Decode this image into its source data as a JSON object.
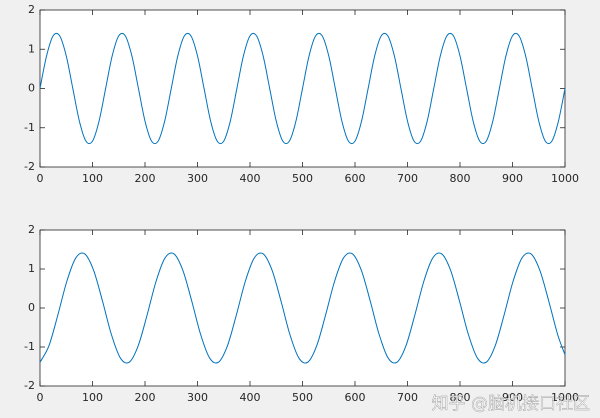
{
  "chart_data": [
    {
      "type": "line",
      "xlim": [
        0,
        1000
      ],
      "ylim": [
        -2,
        2
      ],
      "xticks": [
        0,
        100,
        200,
        300,
        400,
        500,
        600,
        700,
        800,
        900,
        1000
      ],
      "yticks": [
        -2,
        -1,
        0,
        1,
        2
      ],
      "x": [
        0,
        12.5,
        25,
        37.5,
        50,
        62.5,
        75,
        87.5,
        100,
        112.5,
        125,
        137.5,
        150,
        162.5,
        175,
        187.5,
        200,
        212.5,
        225,
        237.5,
        250,
        262.5,
        275,
        287.5,
        300,
        312.5,
        325,
        337.5,
        350,
        362.5,
        375,
        387.5,
        400,
        412.5,
        425,
        437.5,
        450,
        462.5,
        475,
        487.5,
        500,
        512.5,
        525,
        537.5,
        550,
        562.5,
        575,
        587.5,
        600,
        612.5,
        625,
        637.5,
        650,
        662.5,
        675,
        687.5,
        700,
        712.5,
        725,
        737.5,
        750,
        762.5,
        775,
        787.5,
        800,
        812.5,
        825,
        837.5,
        850,
        862.5,
        875,
        887.5,
        900,
        912.5,
        925,
        937.5,
        950,
        962.5,
        975,
        987.5,
        1000
      ],
      "series": [
        {
          "color": "#0072bd",
          "values": [
            0,
            0.83,
            1.34,
            1.34,
            0.83,
            0,
            -0.83,
            -1.34,
            -1.34,
            -0.83,
            0,
            0.83,
            1.34,
            1.34,
            0.83,
            0,
            -0.83,
            -1.34,
            -1.34,
            -0.83,
            0,
            0.83,
            1.34,
            1.34,
            0.83,
            0,
            -0.83,
            -1.34,
            -1.34,
            -0.83,
            0,
            0.83,
            1.34,
            1.34,
            0.83,
            0,
            -0.83,
            -1.34,
            -1.34,
            -0.83,
            0,
            0.83,
            1.34,
            1.34,
            0.83,
            0,
            -0.83,
            -1.34,
            -1.34,
            -0.83,
            0,
            0.83,
            1.34,
            1.34,
            0.83,
            0,
            -0.83,
            -1.34,
            -1.34,
            -0.83,
            0,
            0.83,
            1.34,
            1.34,
            0.83,
            0,
            -0.83,
            -1.34,
            -1.34,
            -0.83,
            0,
            0.83,
            1.34,
            1.34,
            0.83,
            0,
            -0.83,
            -1.34,
            -1.34,
            -0.83,
            0
          ]
        }
      ]
    },
    {
      "type": "line",
      "xlim": [
        0,
        1000
      ],
      "ylim": [
        -2,
        2
      ],
      "xticks": [
        0,
        100,
        200,
        300,
        400,
        500,
        600,
        700,
        800,
        900,
        1000
      ],
      "yticks": [
        -2,
        -1,
        0,
        1,
        2
      ],
      "x": [
        0,
        17,
        34,
        51,
        68,
        85,
        102,
        119,
        136,
        153,
        170,
        187,
        204,
        221,
        238,
        255,
        272,
        289,
        306,
        323,
        340,
        357,
        374,
        391,
        408,
        425,
        442,
        459,
        476,
        493,
        510,
        527,
        544,
        561,
        578,
        595,
        612,
        629,
        646,
        663,
        680,
        697,
        714,
        731,
        748,
        765,
        782,
        799,
        816,
        833,
        850,
        867,
        884,
        901,
        918,
        935,
        952,
        969,
        986,
        1000
      ],
      "series": [
        {
          "color": "#0072bd",
          "values": [
            -1.39,
            -0.97,
            -0.18,
            0.68,
            1.28,
            1.39,
            0.97,
            0.18,
            -0.68,
            -1.28,
            -1.39,
            -0.97,
            -0.18,
            0.68,
            1.28,
            1.39,
            0.97,
            0.18,
            -0.68,
            -1.28,
            -1.39,
            -0.97,
            -0.18,
            0.68,
            1.28,
            1.39,
            0.97,
            0.18,
            -0.68,
            -1.28,
            -1.39,
            -0.97,
            -0.18,
            0.68,
            1.28,
            1.39,
            0.97,
            0.18,
            -0.68,
            -1.28,
            -1.39,
            -0.97,
            -0.18,
            0.68,
            1.28,
            1.39,
            0.97,
            0.18,
            -0.68,
            -1.28,
            -1.39,
            -0.97,
            -0.18,
            0.68,
            1.28,
            1.39,
            0.97,
            0.18,
            -0.68,
            -1.2
          ]
        }
      ]
    }
  ],
  "watermark": "知乎 @脑机接口社区"
}
